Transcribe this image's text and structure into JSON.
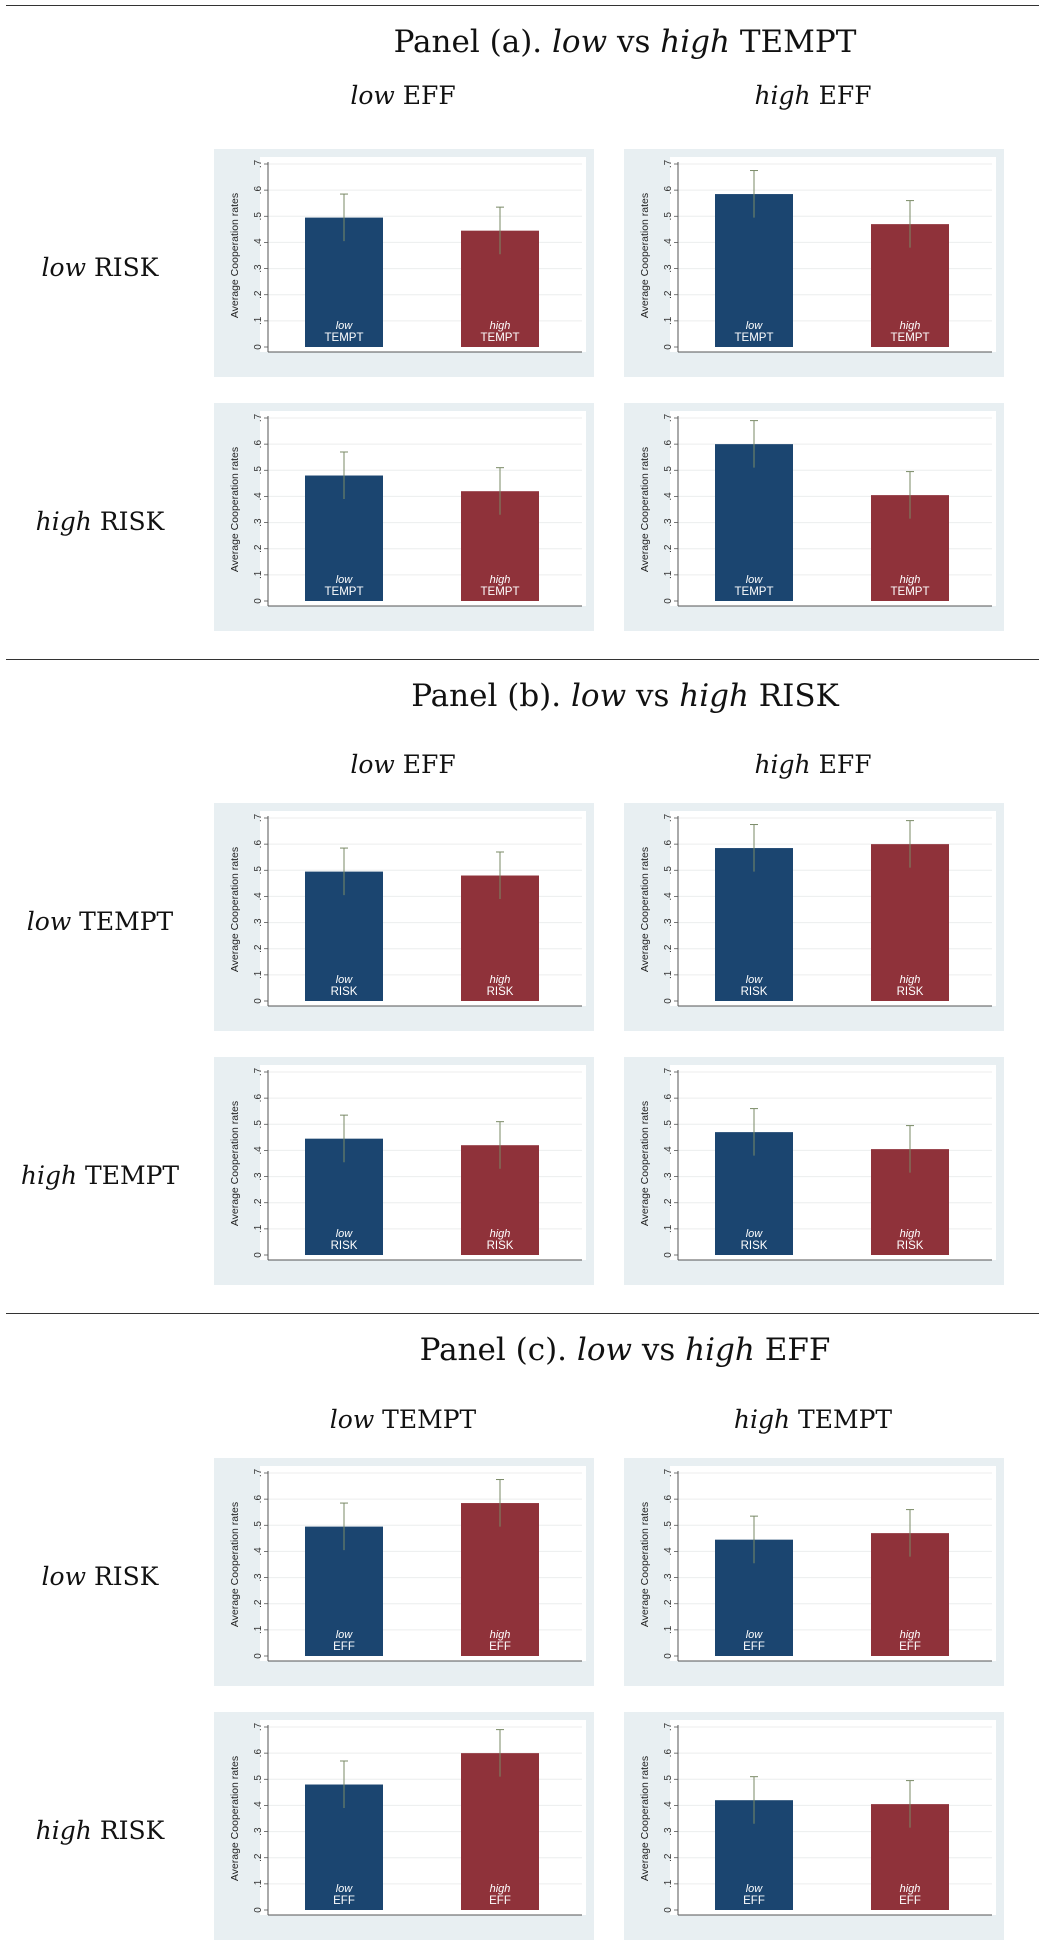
{
  "panels": [
    {
      "title": {
        "prefix": "Panel (a). ",
        "em1": "low",
        "mid": " vs ",
        "em2": "high",
        "suffix": " TEMPT"
      },
      "columns": [
        {
          "em": "low",
          "text": " EFF"
        },
        {
          "em": "high",
          "text": " EFF"
        }
      ],
      "rows": [
        {
          "em": "low",
          "text": " RISK"
        },
        {
          "em": "high",
          "text": " RISK"
        }
      ]
    },
    {
      "title": {
        "prefix": "Panel (b). ",
        "em1": "low",
        "mid": " vs ",
        "em2": "high",
        "suffix": " RISK"
      },
      "columns": [
        {
          "em": "low",
          "text": " EFF"
        },
        {
          "em": "high",
          "text": " EFF"
        }
      ],
      "rows": [
        {
          "em": "low",
          "text": " TEMPT"
        },
        {
          "em": "high",
          "text": " TEMPT"
        }
      ]
    },
    {
      "title": {
        "prefix": "Panel (c). ",
        "em1": "low",
        "mid": " vs ",
        "em2": "high",
        "suffix": " EFF"
      },
      "columns": [
        {
          "em": "low",
          "text": " TEMPT"
        },
        {
          "em": "high",
          "text": " TEMPT"
        }
      ],
      "rows": [
        {
          "em": "low",
          "text": " RISK"
        },
        {
          "em": "high",
          "text": " RISK"
        }
      ]
    }
  ],
  "colors": {
    "low_bar": "#1b4570",
    "high_bar": "#8f323a",
    "error_bar": "#7a8a66",
    "plot_bg": "#ffffff",
    "outer_bg": "#e8eff2"
  },
  "chart_data": [
    {
      "type": "bar",
      "panel": "a",
      "ylabel": "Average Cooperation rates",
      "ylim": [
        0,
        0.7
      ],
      "yticks": [
        "0",
        ".1",
        ".2",
        ".3",
        ".4",
        ".5",
        ".6",
        ".7"
      ],
      "categories": [
        {
          "top": "low",
          "bottom": "TEMPT"
        },
        {
          "top": "high",
          "bottom": "TEMPT"
        }
      ],
      "values": [
        0.495,
        0.445
      ],
      "ci_high": [
        0.585,
        0.535
      ],
      "ci_low": [
        0.405,
        0.355
      ]
    },
    {
      "type": "bar",
      "panel": "a",
      "ylabel": "Average Cooperation rates",
      "ylim": [
        0,
        0.7
      ],
      "yticks": [
        "0",
        ".1",
        ".2",
        ".3",
        ".4",
        ".5",
        ".6",
        ".7"
      ],
      "categories": [
        {
          "top": "low",
          "bottom": "TEMPT"
        },
        {
          "top": "high",
          "bottom": "TEMPT"
        }
      ],
      "values": [
        0.585,
        0.47
      ],
      "ci_high": [
        0.675,
        0.56
      ],
      "ci_low": [
        0.495,
        0.38
      ]
    },
    {
      "type": "bar",
      "panel": "a",
      "ylabel": "Average Cooperation rates",
      "ylim": [
        0,
        0.7
      ],
      "yticks": [
        "0",
        ".1",
        ".2",
        ".3",
        ".4",
        ".5",
        ".6",
        ".7"
      ],
      "categories": [
        {
          "top": "low",
          "bottom": "TEMPT"
        },
        {
          "top": "high",
          "bottom": "TEMPT"
        }
      ],
      "values": [
        0.48,
        0.42
      ],
      "ci_high": [
        0.57,
        0.51
      ],
      "ci_low": [
        0.39,
        0.33
      ]
    },
    {
      "type": "bar",
      "panel": "a",
      "ylabel": "Average Cooperation rates",
      "ylim": [
        0,
        0.7
      ],
      "yticks": [
        "0",
        ".1",
        ".2",
        ".3",
        ".4",
        ".5",
        ".6",
        ".7"
      ],
      "categories": [
        {
          "top": "low",
          "bottom": "TEMPT"
        },
        {
          "top": "high",
          "bottom": "TEMPT"
        }
      ],
      "values": [
        0.6,
        0.405
      ],
      "ci_high": [
        0.69,
        0.495
      ],
      "ci_low": [
        0.51,
        0.315
      ]
    },
    {
      "type": "bar",
      "panel": "b",
      "ylabel": "Average Cooperation rates",
      "ylim": [
        0,
        0.7
      ],
      "yticks": [
        "0",
        ".1",
        ".2",
        ".3",
        ".4",
        ".5",
        ".6",
        ".7"
      ],
      "categories": [
        {
          "top": "low",
          "bottom": "RISK"
        },
        {
          "top": "high",
          "bottom": "RISK"
        }
      ],
      "values": [
        0.495,
        0.48
      ],
      "ci_high": [
        0.585,
        0.57
      ],
      "ci_low": [
        0.405,
        0.39
      ]
    },
    {
      "type": "bar",
      "panel": "b",
      "ylabel": "Average Cooperation rates",
      "ylim": [
        0,
        0.7
      ],
      "yticks": [
        "0",
        ".1",
        ".2",
        ".3",
        ".4",
        ".5",
        ".6",
        ".7"
      ],
      "categories": [
        {
          "top": "low",
          "bottom": "RISK"
        },
        {
          "top": "high",
          "bottom": "RISK"
        }
      ],
      "values": [
        0.585,
        0.6
      ],
      "ci_high": [
        0.675,
        0.69
      ],
      "ci_low": [
        0.495,
        0.51
      ]
    },
    {
      "type": "bar",
      "panel": "b",
      "ylabel": "Average Cooperation rates",
      "ylim": [
        0,
        0.7
      ],
      "yticks": [
        "0",
        ".1",
        ".2",
        ".3",
        ".4",
        ".5",
        ".6",
        ".7"
      ],
      "categories": [
        {
          "top": "low",
          "bottom": "RISK"
        },
        {
          "top": "high",
          "bottom": "RISK"
        }
      ],
      "values": [
        0.445,
        0.42
      ],
      "ci_high": [
        0.535,
        0.51
      ],
      "ci_low": [
        0.355,
        0.33
      ]
    },
    {
      "type": "bar",
      "panel": "b",
      "ylabel": "Average Cooperation rates",
      "ylim": [
        0,
        0.7
      ],
      "yticks": [
        "0",
        ".1",
        ".2",
        ".3",
        ".4",
        ".5",
        ".6",
        ".7"
      ],
      "categories": [
        {
          "top": "low",
          "bottom": "RISK"
        },
        {
          "top": "high",
          "bottom": "RISK"
        }
      ],
      "values": [
        0.47,
        0.405
      ],
      "ci_high": [
        0.56,
        0.495
      ],
      "ci_low": [
        0.38,
        0.315
      ]
    },
    {
      "type": "bar",
      "panel": "c",
      "ylabel": "Average Cooperation rates",
      "ylim": [
        0,
        0.7
      ],
      "yticks": [
        "0",
        ".1",
        ".2",
        ".3",
        ".4",
        ".5",
        ".6",
        ".7"
      ],
      "categories": [
        {
          "top": "low",
          "bottom": "EFF"
        },
        {
          "top": "high",
          "bottom": "EFF"
        }
      ],
      "values": [
        0.495,
        0.585
      ],
      "ci_high": [
        0.585,
        0.675
      ],
      "ci_low": [
        0.405,
        0.495
      ]
    },
    {
      "type": "bar",
      "panel": "c",
      "ylabel": "Average Cooperation rates",
      "ylim": [
        0,
        0.7
      ],
      "yticks": [
        "0",
        ".1",
        ".2",
        ".3",
        ".4",
        ".5",
        ".6",
        ".7"
      ],
      "categories": [
        {
          "top": "low",
          "bottom": "EFF"
        },
        {
          "top": "high",
          "bottom": "EFF"
        }
      ],
      "values": [
        0.445,
        0.47
      ],
      "ci_high": [
        0.535,
        0.56
      ],
      "ci_low": [
        0.355,
        0.38
      ]
    },
    {
      "type": "bar",
      "panel": "c",
      "ylabel": "Average Cooperation rates",
      "ylim": [
        0,
        0.7
      ],
      "yticks": [
        "0",
        ".1",
        ".2",
        ".3",
        ".4",
        ".5",
        ".6",
        ".7"
      ],
      "categories": [
        {
          "top": "low",
          "bottom": "EFF"
        },
        {
          "top": "high",
          "bottom": "EFF"
        }
      ],
      "values": [
        0.48,
        0.6
      ],
      "ci_high": [
        0.57,
        0.69
      ],
      "ci_low": [
        0.39,
        0.51
      ]
    },
    {
      "type": "bar",
      "panel": "c",
      "ylabel": "Average Cooperation rates",
      "ylim": [
        0,
        0.7
      ],
      "yticks": [
        "0",
        ".1",
        ".2",
        ".3",
        ".4",
        ".5",
        ".6",
        ".7"
      ],
      "categories": [
        {
          "top": "low",
          "bottom": "EFF"
        },
        {
          "top": "high",
          "bottom": "EFF"
        }
      ],
      "values": [
        0.42,
        0.405
      ],
      "ci_high": [
        0.51,
        0.495
      ],
      "ci_low": [
        0.33,
        0.315
      ]
    }
  ]
}
